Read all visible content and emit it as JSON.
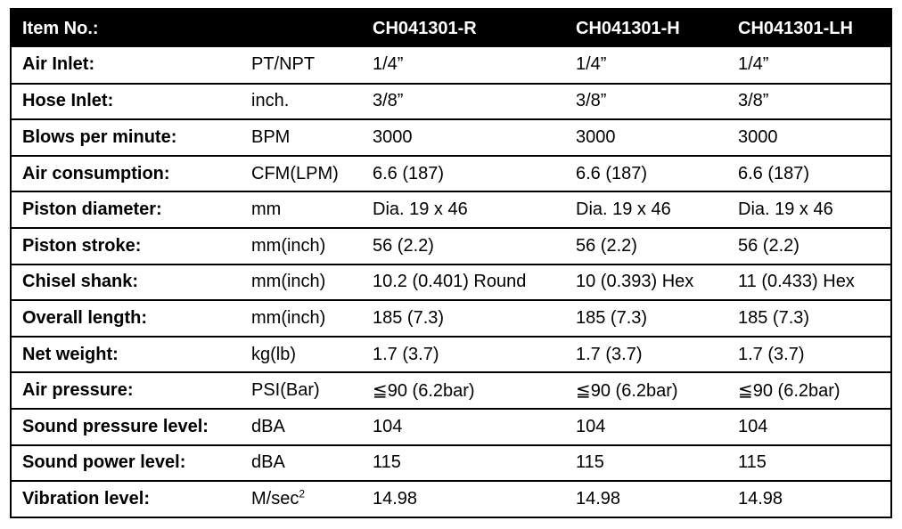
{
  "header": {
    "item_label": "Item No.:",
    "unit_label": "",
    "models": [
      "CH041301-R",
      "CH041301-H",
      "CH041301-LH"
    ]
  },
  "rows": [
    {
      "label": "Air Inlet:",
      "unit": "PT/NPT",
      "values": [
        "1/4”",
        "1/4”",
        "1/4”"
      ]
    },
    {
      "label": "Hose Inlet:",
      "unit": "inch.",
      "values": [
        "3/8”",
        "3/8”",
        "3/8”"
      ]
    },
    {
      "label": "Blows per minute:",
      "unit": "BPM",
      "values": [
        "3000",
        "3000",
        "3000"
      ]
    },
    {
      "label": "Air consumption:",
      "unit": "CFM(LPM)",
      "values": [
        "6.6 (187)",
        "6.6 (187)",
        "6.6 (187)"
      ]
    },
    {
      "label": "Piston diameter:",
      "unit": "mm",
      "values": [
        "Dia. 19 x 46",
        "Dia. 19 x 46",
        "Dia. 19 x 46"
      ]
    },
    {
      "label": "Piston stroke:",
      "unit": "mm(inch)",
      "values": [
        "56 (2.2)",
        "56 (2.2)",
        "56 (2.2)"
      ]
    },
    {
      "label": "Chisel shank:",
      "unit": "mm(inch)",
      "values": [
        "10.2 (0.401) Round",
        "10 (0.393) Hex",
        "11 (0.433) Hex"
      ]
    },
    {
      "label": "Overall length:",
      "unit": "mm(inch)",
      "values": [
        "185 (7.3)",
        "185 (7.3)",
        "185 (7.3)"
      ]
    },
    {
      "label": "Net weight:",
      "unit": "kg(lb)",
      "values": [
        "1.7 (3.7)",
        "1.7 (3.7)",
        "1.7 (3.7)"
      ]
    },
    {
      "label": "Air pressure:",
      "unit": "PSI(Bar)",
      "values": [
        "≦90 (6.2bar)",
        "≦90 (6.2bar)",
        "≦90 (6.2bar)"
      ]
    },
    {
      "label": "Sound pressure level:",
      "unit": "dBA",
      "values": [
        "104",
        "104",
        "104"
      ]
    },
    {
      "label": "Sound power level:",
      "unit": "dBA",
      "values": [
        "115",
        "115",
        "115"
      ]
    },
    {
      "label": "Vibration level:",
      "unit": "M/sec",
      "unit_sup": "2",
      "values": [
        "14.98",
        "14.98",
        "14.98"
      ]
    }
  ]
}
